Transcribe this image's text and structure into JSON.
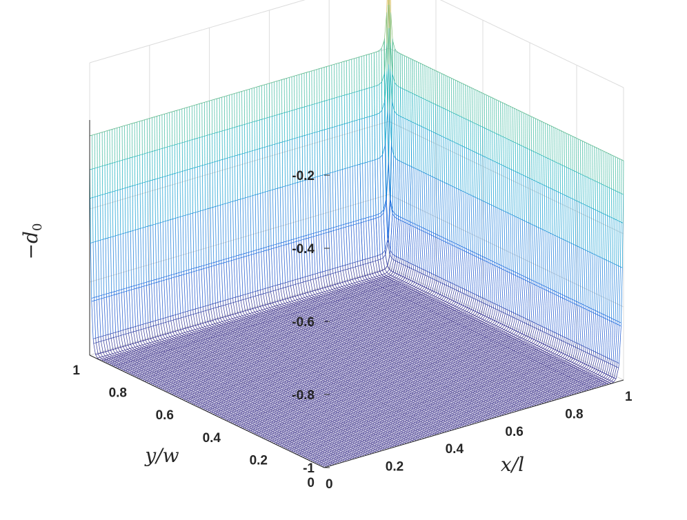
{
  "chart_data": {
    "type": "surface",
    "style": "mesh",
    "colormap": "parula",
    "xlabel": "x/l",
    "ylabel": "y/w",
    "zlabel": "−d0",
    "xlim": [
      0,
      1
    ],
    "ylim": [
      0,
      1
    ],
    "zlim": [
      -1,
      -0.2
    ],
    "xticks": [
      "0",
      "0.2",
      "0.4",
      "0.6",
      "0.8",
      "1"
    ],
    "yticks": [
      "0",
      "0.2",
      "0.4",
      "0.6",
      "0.8",
      "1"
    ],
    "zticks": [
      "-1",
      "-0.8",
      "-0.6",
      "-0.4",
      "-0.2"
    ],
    "grid": true,
    "surface_summary": {
      "interior_value": -1,
      "edge_value_at_x1": -0.4,
      "edge_value_at_y1": -0.4,
      "corner_value_x1_y1": -0.02
    }
  }
}
